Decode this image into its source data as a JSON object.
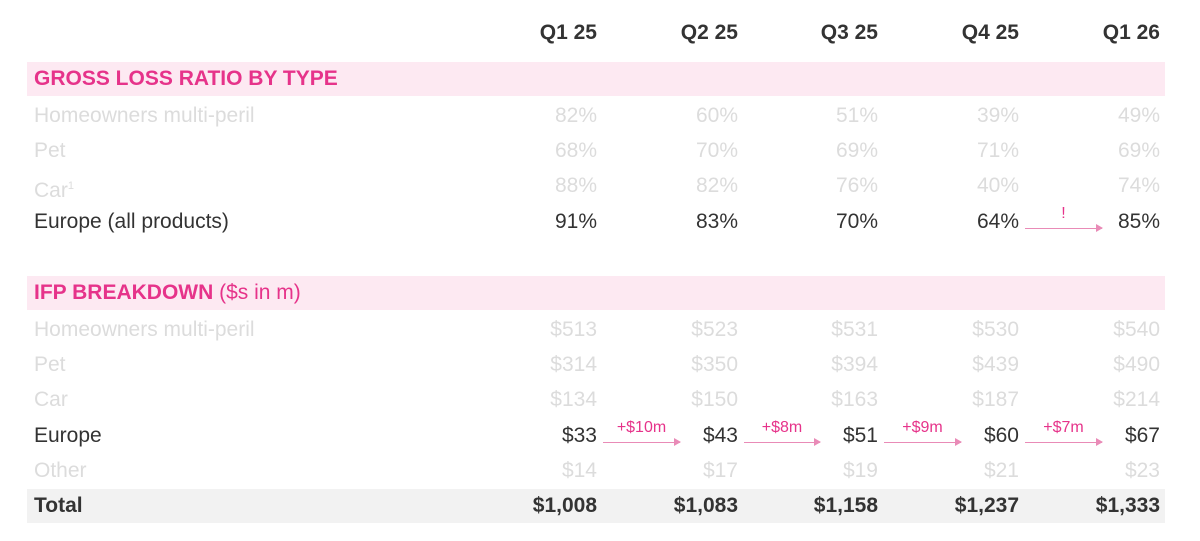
{
  "header": {
    "columns": [
      "Q1 25",
      "Q2 25",
      "Q3 25",
      "Q4 25",
      "Q1 26"
    ]
  },
  "sections": [
    {
      "title": "GROSS LOSS RATIO BY TYPE",
      "rows": [
        {
          "label": "Homeowners multi-peril",
          "values": [
            "82%",
            "60%",
            "51%",
            "39%",
            "49%"
          ]
        },
        {
          "label": "Pet",
          "values": [
            "68%",
            "70%",
            "69%",
            "71%",
            "69%"
          ]
        },
        {
          "label": "Car",
          "footnote": "1",
          "values": [
            "88%",
            "82%",
            "76%",
            "40%",
            "74%"
          ]
        },
        {
          "label": "Europe (all products)",
          "highlight": true,
          "values": [
            "91%",
            "83%",
            "70%",
            "64%",
            "85%"
          ],
          "arrows": [
            null,
            null,
            null,
            "!"
          ]
        }
      ]
    },
    {
      "title": "IFP BREAKDOWN",
      "unit": "($s in m)",
      "rows": [
        {
          "label": "Homeowners multi-peril",
          "values": [
            "$513",
            "$523",
            "$531",
            "$530",
            "$540"
          ]
        },
        {
          "label": "Pet",
          "values": [
            "$314",
            "$350",
            "$394",
            "$439",
            "$490"
          ]
        },
        {
          "label": "Car",
          "values": [
            "$134",
            "$150",
            "$163",
            "$187",
            "$214"
          ]
        },
        {
          "label": "Europe",
          "highlight": true,
          "values": [
            "$33",
            "$43",
            "$51",
            "$60",
            "$67"
          ],
          "arrows": [
            "+$10m",
            "+$8m",
            "+$9m",
            "+$7m"
          ]
        },
        {
          "label": "Other",
          "values": [
            "$14",
            "$17",
            "$19",
            "$21",
            "$23"
          ]
        }
      ],
      "total": {
        "label": "Total",
        "values": [
          "$1,008",
          "$1,083",
          "$1,158",
          "$1,237",
          "$1,333"
        ]
      }
    }
  ]
}
